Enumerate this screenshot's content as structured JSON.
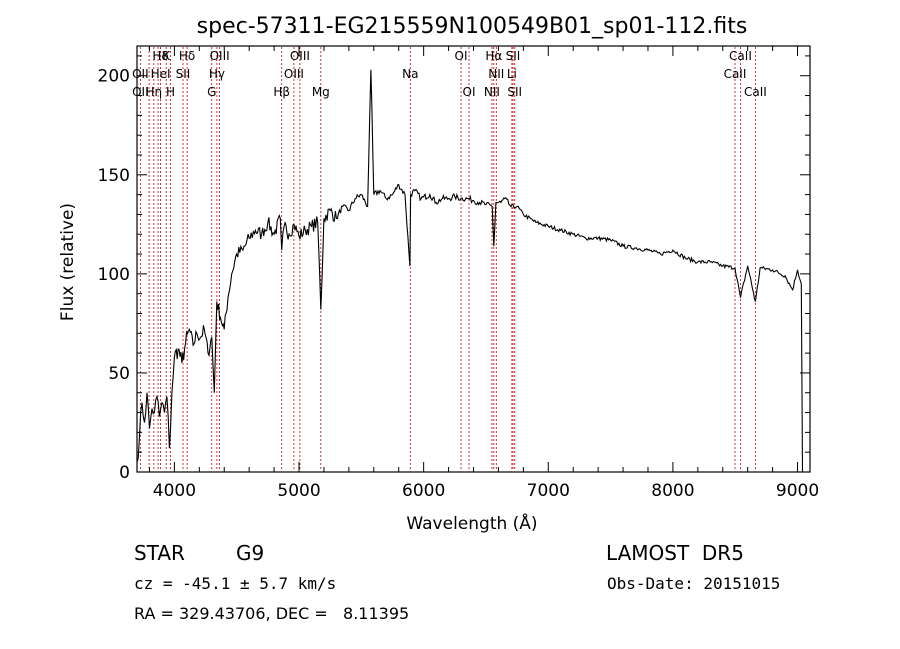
{
  "chart_data": {
    "type": "line",
    "title": "spec-57311-EG215559N100549B01_sp01-112.fits",
    "xlabel": "Wavelength (Å)",
    "ylabel": "Flux (relative)",
    "xlim": [
      3700,
      9100
    ],
    "ylim": [
      0,
      215
    ],
    "xticks": [
      4000,
      5000,
      6000,
      7000,
      8000,
      9000
    ],
    "yticks": [
      0,
      50,
      100,
      150,
      200
    ],
    "grid": false,
    "series": [
      {
        "x": [
          3700,
          3720,
          3740,
          3760,
          3780,
          3800,
          3820,
          3840,
          3860,
          3880,
          3900,
          3920,
          3940,
          3960,
          3980,
          4000,
          4030,
          4060,
          4090,
          4120,
          4150,
          4180,
          4210,
          4240,
          4270,
          4300,
          4320,
          4340,
          4370,
          4400,
          4430,
          4460,
          4500,
          4550,
          4600,
          4650,
          4700,
          4750,
          4800,
          4850,
          4861,
          4880,
          4920,
          4960,
          5000,
          5050,
          5100,
          5150,
          5175,
          5200,
          5250,
          5300,
          5350,
          5400,
          5450,
          5500,
          5550,
          5577,
          5600,
          5650,
          5700,
          5750,
          5800,
          5850,
          5890,
          5895,
          5930,
          5980,
          6050,
          6100,
          6150,
          6200,
          6250,
          6300,
          6350,
          6400,
          6450,
          6500,
          6550,
          6563,
          6580,
          6620,
          6650,
          6700,
          6750,
          6800,
          6900,
          7000,
          7100,
          7200,
          7300,
          7400,
          7500,
          7600,
          7700,
          7800,
          7900,
          8000,
          8100,
          8200,
          8300,
          8400,
          8498,
          8542,
          8600,
          8662,
          8700,
          8800,
          8900,
          8960,
          9000,
          9030,
          9040
        ],
        "y": [
          5,
          18,
          35,
          25,
          40,
          22,
          32,
          30,
          38,
          28,
          35,
          30,
          38,
          12,
          40,
          58,
          62,
          55,
          65,
          72,
          64,
          70,
          68,
          72,
          60,
          68,
          40,
          86,
          78,
          72,
          88,
          100,
          110,
          112,
          118,
          122,
          120,
          126,
          120,
          128,
          112,
          124,
          120,
          125,
          119,
          122,
          124,
          126,
          82,
          128,
          132,
          128,
          134,
          132,
          138,
          140,
          134,
          203,
          140,
          142,
          138,
          140,
          145,
          140,
          104,
          140,
          142,
          138,
          140,
          136,
          138,
          138,
          139,
          138,
          138,
          137,
          136,
          135,
          134,
          114,
          136,
          136,
          138,
          134,
          134,
          130,
          126,
          124,
          122,
          120,
          118,
          118,
          117,
          114,
          113,
          112,
          110,
          112,
          108,
          106,
          106,
          104,
          103,
          88,
          104,
          86,
          103,
          102,
          99,
          92,
          102,
          95,
          0
        ]
      }
    ],
    "line_markers": {
      "row1": [
        {
          "label": "Hδ",
          "x": 3889
        },
        {
          "label": "K",
          "x": 3934
        },
        {
          "label": "Hδ",
          "x": 4102
        },
        {
          "label": "OIII",
          "x": 4363
        },
        {
          "label": "OIII",
          "x": 5007
        },
        {
          "label": "OI",
          "x": 6300
        },
        {
          "label": "Hα",
          "x": 6563
        },
        {
          "label": "SII",
          "x": 6717
        },
        {
          "label": "CaII",
          "x": 8542
        }
      ],
      "row2": [
        {
          "label": "OII",
          "x": 3727
        },
        {
          "label": "HeI",
          "x": 3889
        },
        {
          "label": "SII",
          "x": 4069
        },
        {
          "label": "Hγ",
          "x": 4341
        },
        {
          "label": "OIII",
          "x": 4959
        },
        {
          "label": "Na",
          "x": 5893
        },
        {
          "label": "NII",
          "x": 6583
        },
        {
          "label": "Li",
          "x": 6708
        },
        {
          "label": "CaII",
          "x": 8498
        }
      ],
      "row3": [
        {
          "label": "OII",
          "x": 3727
        },
        {
          "label": "Hη",
          "x": 3835
        },
        {
          "label": "H",
          "x": 3969
        },
        {
          "label": "G",
          "x": 4300
        },
        {
          "label": "Hβ",
          "x": 4861
        },
        {
          "label": "Mg",
          "x": 5175
        },
        {
          "label": "OI",
          "x": 6364
        },
        {
          "label": "NII",
          "x": 6548
        },
        {
          "label": "SII",
          "x": 6731
        },
        {
          "label": "CaII",
          "x": 8662
        }
      ]
    },
    "marker_lines_x": [
      3727,
      3797,
      3835,
      3869,
      3889,
      3934,
      3969,
      4069,
      4102,
      4300,
      4341,
      4363,
      4861,
      4959,
      5007,
      5175,
      5893,
      6300,
      6364,
      6548,
      6563,
      6583,
      6708,
      6717,
      6731,
      8498,
      8542,
      8662
    ]
  },
  "info": {
    "object_class": "STAR",
    "subclass": "G9",
    "survey": "LAMOST  DR5",
    "cz": "cz = -45.1 ± 5.7 km/s",
    "obs_date": "Obs-Date: 20151015",
    "radec": "RA = 329.43706, DEC =   8.11395"
  },
  "colors": {
    "marker_line": "#c00000",
    "spectrum": "#000000"
  }
}
